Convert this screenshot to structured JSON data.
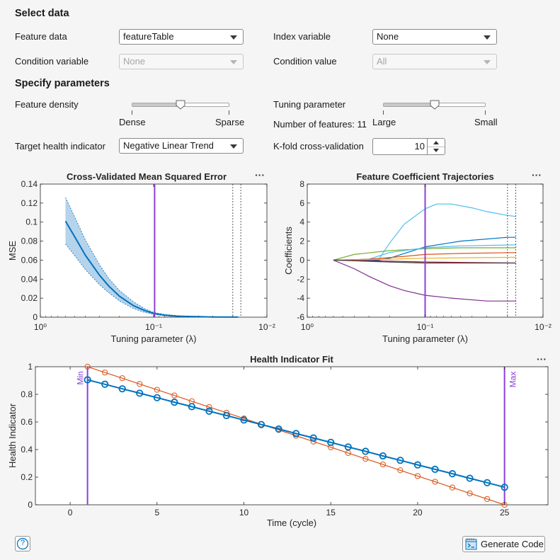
{
  "select_data": {
    "title": "Select data",
    "feature_data_label": "Feature data",
    "feature_data_value": "featureTable",
    "index_variable_label": "Index variable",
    "index_variable_value": "None",
    "condition_variable_label": "Condition variable",
    "condition_variable_value": "None",
    "condition_value_label": "Condition value",
    "condition_value_value": "All"
  },
  "specify_parameters": {
    "title": "Specify parameters",
    "feature_density_label": "Feature density",
    "density_min_label": "Dense",
    "density_max_label": "Sparse",
    "feature_density_level": 0.5,
    "tuning_parameter_label": "Tuning parameter",
    "tuning_min_label": "Large",
    "tuning_max_label": "Small",
    "tuning_level": 0.5,
    "num_features_text": "Number of features: 11",
    "target_label": "Target health indicator",
    "target_value": "Negative Linear Trend",
    "kfold_label": "K-fold cross-validation",
    "kfold_value": "10"
  },
  "menu_glyph": "···",
  "footer": {
    "help_glyph": "?",
    "generate_code_label": "Generate Code"
  },
  "colors": {
    "blue": "#0072bd",
    "orange": "#d95319",
    "purple": "#8b3fd8",
    "band": "#b5d3ea"
  },
  "chart_data": [
    {
      "type": "line",
      "title": "Cross-Validated Mean Squared Error",
      "xlabel": "Tuning parameter (λ)",
      "ylabel": "MSE",
      "xscale": "log-reversed",
      "xlim": [
        1,
        0.01
      ],
      "ylim": [
        0,
        0.14
      ],
      "xticks": [
        "10⁰",
        "10⁻¹",
        "10⁻²"
      ],
      "yticks": [
        "0",
        "0.02",
        "0.04",
        "0.06",
        "0.08",
        "0.1",
        "0.12",
        "0.14"
      ],
      "series": [
        {
          "x": [
            0.6,
            0.5,
            0.4,
            0.3,
            0.25,
            0.2,
            0.15,
            0.12,
            0.1,
            0.08,
            0.06,
            0.04,
            0.03,
            0.02,
            0.018
          ],
          "y": [
            0.101,
            0.085,
            0.065,
            0.044,
            0.033,
            0.022,
            0.012,
            0.007,
            0.004,
            0.002,
            0.001,
            0.0005,
            0.0002,
            0.0001,
            0.0001
          ]
        }
      ],
      "band_upper": [
        0.126,
        0.106,
        0.081,
        0.055,
        0.041,
        0.028,
        0.016,
        0.009,
        0.005,
        0.003,
        0.0015,
        0.0007,
        0.0003,
        0.0002,
        0.0002
      ],
      "band_lower": [
        0.077,
        0.065,
        0.05,
        0.034,
        0.026,
        0.017,
        0.009,
        0.005,
        0.003,
        0.0015,
        0.0007,
        0.0003,
        0.0001,
        0.0001,
        0.0001
      ],
      "selected_lambda": 0.098,
      "dotted_lines": [
        0.02,
        0.017
      ]
    },
    {
      "type": "line",
      "title": "Feature Coefficient Trajectories",
      "xlabel": "Tuning parameter (λ)",
      "ylabel": "Coefficients",
      "xscale": "log-reversed",
      "xlim": [
        1,
        0.01
      ],
      "ylim": [
        -6,
        8
      ],
      "xticks": [
        "10⁰",
        "10⁻¹",
        "10⁻²"
      ],
      "yticks": [
        "-6",
        "-4",
        "-2",
        "0",
        "2",
        "4",
        "6",
        "8"
      ],
      "selected_lambda": 0.1,
      "dotted_lines": [
        0.02,
        0.017
      ],
      "series": [
        {
          "color": "#4dbeee",
          "x": [
            0.6,
            0.3,
            0.25,
            0.2,
            0.15,
            0.1,
            0.08,
            0.06,
            0.04,
            0.03,
            0.02,
            0.017
          ],
          "y": [
            0,
            0,
            0,
            1.8,
            3.8,
            5.4,
            5.9,
            5.9,
            5.5,
            5.1,
            4.7,
            4.6
          ]
        },
        {
          "color": "#0072bd",
          "x": [
            0.6,
            0.25,
            0.2,
            0.1,
            0.05,
            0.02,
            0.017
          ],
          "y": [
            0,
            0,
            0.2,
            1.4,
            2.0,
            2.4,
            2.4
          ]
        },
        {
          "color": "#77ac30",
          "x": [
            0.6,
            0.4,
            0.2,
            0.1,
            0.05,
            0.017
          ],
          "y": [
            0,
            0.6,
            1.0,
            1.2,
            1.3,
            1.3
          ]
        },
        {
          "color": "#4dbeee",
          "x": [
            0.6,
            0.3,
            0.2,
            0.1,
            0.05,
            0.017
          ],
          "y": [
            0,
            0.1,
            0.8,
            1.3,
            1.5,
            1.6
          ]
        },
        {
          "color": "#d95319",
          "x": [
            0.6,
            0.3,
            0.15,
            0.1,
            0.05,
            0.017
          ],
          "y": [
            0,
            0.1,
            0.4,
            0.6,
            0.7,
            0.8
          ]
        },
        {
          "color": "#edb120",
          "x": [
            0.6,
            0.2,
            0.1,
            0.017
          ],
          "y": [
            0,
            0.1,
            0.2,
            0.3
          ]
        },
        {
          "color": "#a2142f",
          "x": [
            0.6,
            0.2,
            0.1,
            0.017
          ],
          "y": [
            0,
            -0.1,
            -0.2,
            -0.3
          ]
        },
        {
          "color": "#444444",
          "x": [
            0.6,
            0.2,
            0.1,
            0.017
          ],
          "y": [
            0,
            -0.2,
            -0.3,
            -0.3
          ]
        },
        {
          "color": "#7e2f8e",
          "x": [
            0.6,
            0.4,
            0.3,
            0.2,
            0.15,
            0.1,
            0.06,
            0.03,
            0.017
          ],
          "y": [
            0,
            -0.9,
            -1.7,
            -2.7,
            -3.2,
            -3.7,
            -4.0,
            -4.3,
            -4.3
          ]
        }
      ]
    },
    {
      "type": "line",
      "title": "Health Indicator Fit",
      "xlabel": "Time (cycle)",
      "ylabel": "Health Indicator",
      "xlim": [
        -2,
        27.5
      ],
      "ylim": [
        0,
        1
      ],
      "xticks": [
        "0",
        "5",
        "10",
        "15",
        "20",
        "25"
      ],
      "yticks": [
        "0",
        "0.2",
        "0.4",
        "0.6",
        "0.8",
        "1"
      ],
      "min_label": "Min",
      "max_label": "Max",
      "min_x": 1,
      "max_x": 25,
      "series": [
        {
          "color": "#0072bd",
          "x": [
            1,
            2,
            3,
            4,
            5,
            6,
            7,
            8,
            9,
            10,
            11,
            12,
            13,
            14,
            15,
            16,
            17,
            18,
            19,
            20,
            21,
            22,
            23,
            24,
            25
          ],
          "y": [
            0.905,
            0.873,
            0.84,
            0.808,
            0.776,
            0.743,
            0.711,
            0.678,
            0.646,
            0.614,
            0.581,
            0.549,
            0.516,
            0.484,
            0.452,
            0.419,
            0.387,
            0.354,
            0.322,
            0.289,
            0.257,
            0.225,
            0.192,
            0.16,
            0.127
          ]
        },
        {
          "color": "#d95319",
          "x": [
            1,
            2,
            3,
            4,
            5,
            6,
            7,
            8,
            9,
            10,
            11,
            12,
            13,
            14,
            15,
            16,
            17,
            18,
            19,
            20,
            21,
            22,
            23,
            24,
            25
          ],
          "y": [
            1,
            0.958,
            0.917,
            0.875,
            0.833,
            0.792,
            0.75,
            0.708,
            0.667,
            0.625,
            0.583,
            0.542,
            0.5,
            0.458,
            0.417,
            0.375,
            0.333,
            0.292,
            0.25,
            0.208,
            0.167,
            0.125,
            0.083,
            0.042,
            0
          ]
        }
      ]
    }
  ]
}
